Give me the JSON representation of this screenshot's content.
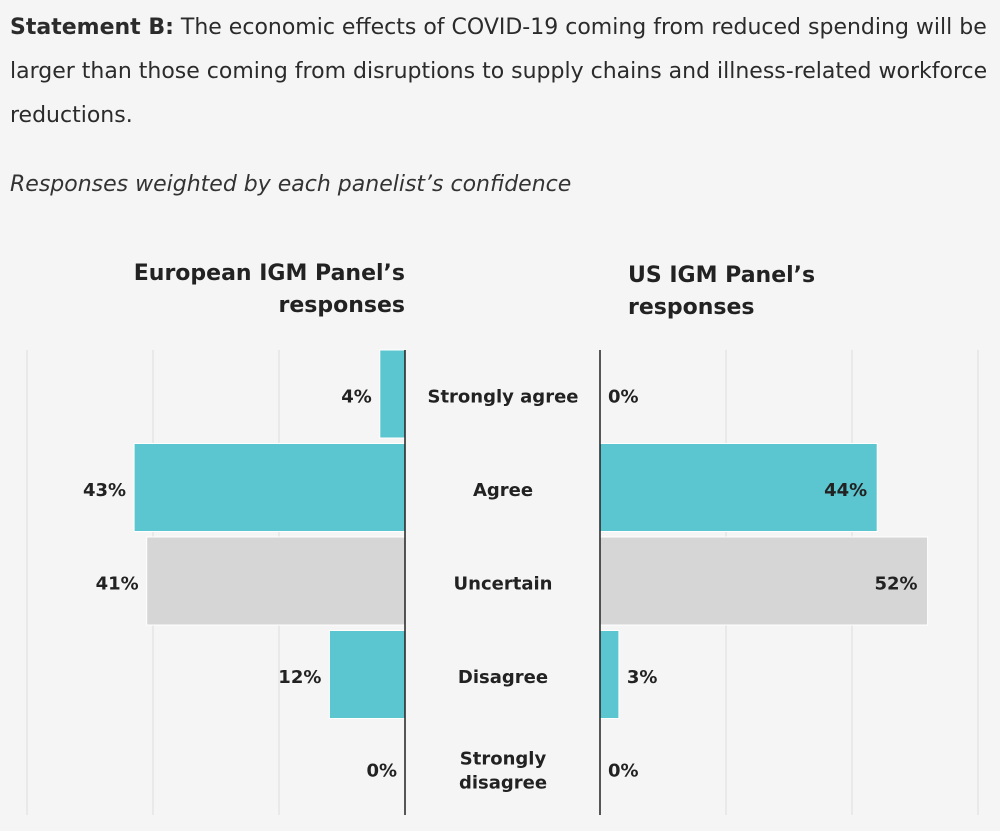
{
  "statement": {
    "prefix": "Statement B:",
    "text": " The economic effects of COVID-19 coming from reduced spending will be larger than those coming from disruptions to supply chains and illness-related workforce reductions."
  },
  "subtitle": "Responses weighted by each panelist’s confidence",
  "colors": {
    "agree": "#5bc5d0",
    "uncertain": "#d6d6d6",
    "axis": "#222222",
    "grid": "#dddddd"
  },
  "chart_data": {
    "type": "bar",
    "categories": [
      "Strongly agree",
      "Agree",
      "Uncertain",
      "Disagree",
      "Strongly disagree"
    ],
    "category_labels": [
      [
        "Strongly agree"
      ],
      [
        "Agree"
      ],
      [
        "Uncertain"
      ],
      [
        "Disagree"
      ],
      [
        "Strongly",
        "disagree"
      ]
    ],
    "category_colors": [
      "agree",
      "agree",
      "uncertain",
      "agree",
      "agree"
    ],
    "xlim": [
      0,
      60
    ],
    "grid": true,
    "panels": [
      {
        "name": "European IGM Panel’s responses",
        "title_lines": [
          "European IGM Panel’s",
          "responses"
        ],
        "values": [
          4,
          43,
          41,
          12,
          0
        ],
        "labels": [
          "4%",
          "43%",
          "41%",
          "12%",
          "0%"
        ]
      },
      {
        "name": "US IGM Panel’s responses",
        "title_lines": [
          "US IGM Panel’s",
          "responses"
        ],
        "values": [
          0,
          44,
          52,
          3,
          0
        ],
        "labels": [
          "0%",
          "44%",
          "52%",
          "3%",
          "0%"
        ]
      }
    ]
  }
}
